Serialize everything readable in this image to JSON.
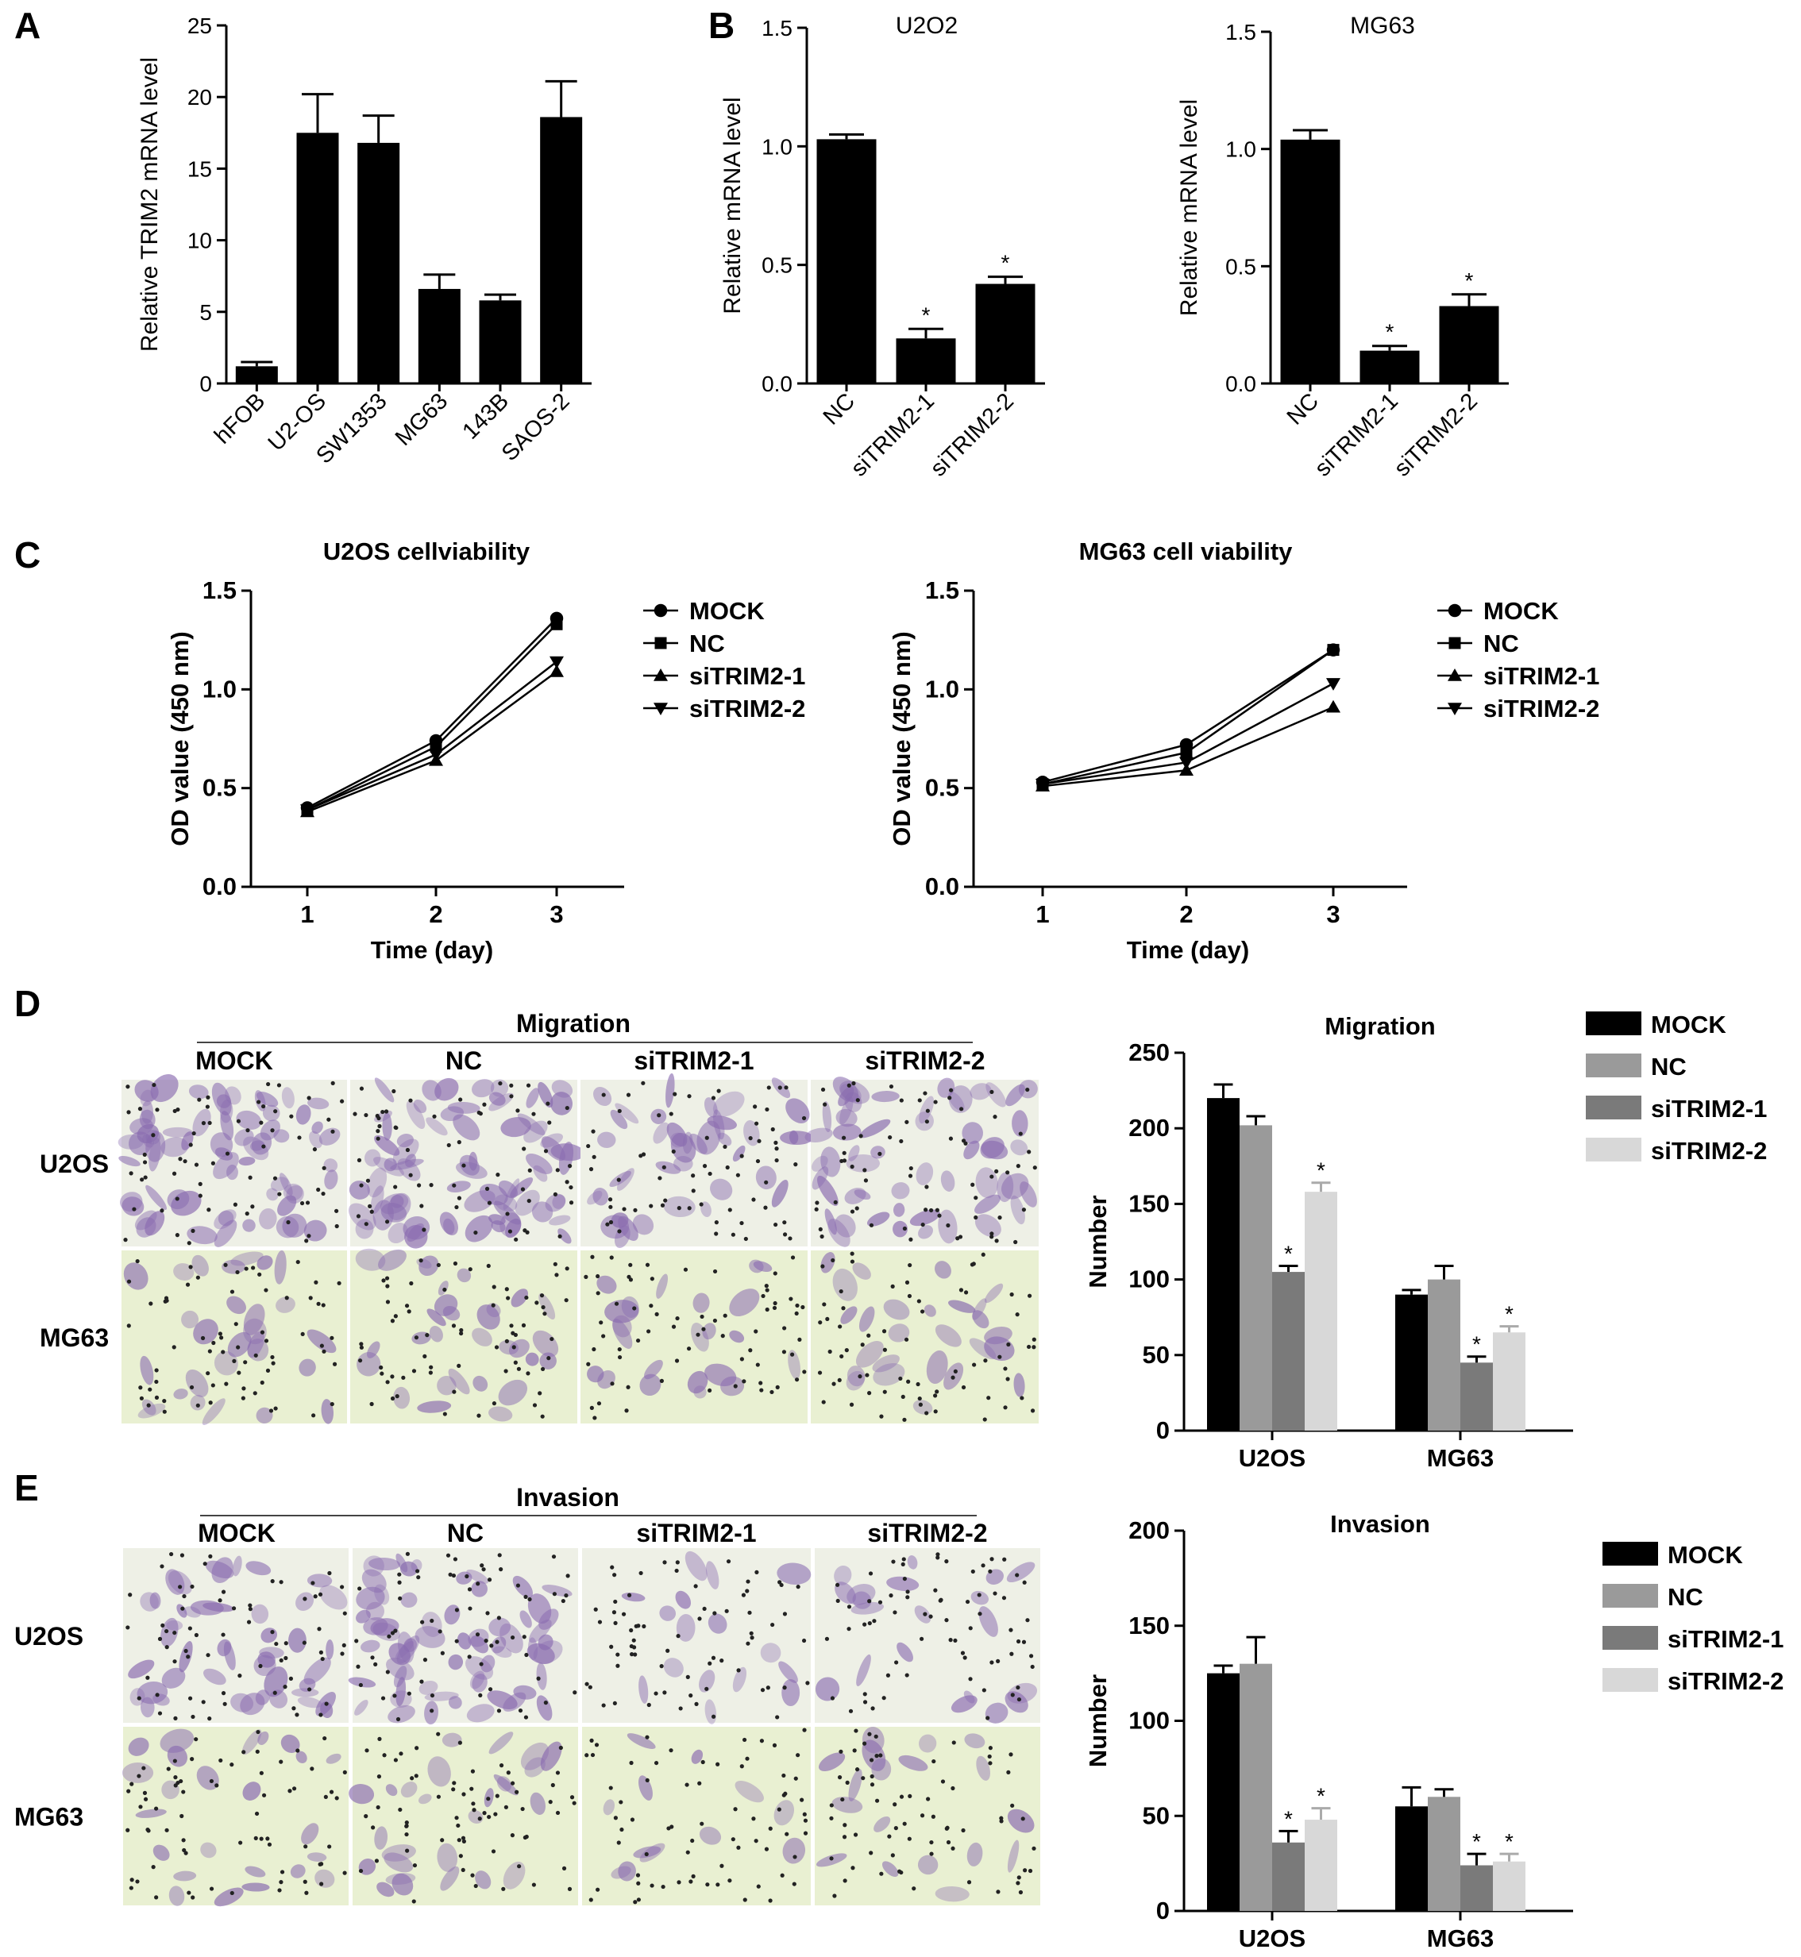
{
  "panels": {
    "A": "A",
    "B": "B",
    "C": "C",
    "D": "D",
    "E": "E"
  },
  "micrographs": {
    "migration_title": "Migration",
    "invasion_title": "Invasion",
    "columns": [
      "MOCK",
      "NC",
      "siTRIM2-1",
      "siTRIM2-2"
    ],
    "rows": [
      "U2OS",
      "MG63"
    ]
  },
  "colors": {
    "bar_black": "#000000",
    "bar_gray1": "#9a9a9a",
    "bar_gray2": "#7a7a7a",
    "bar_gray3": "#d8d8d8",
    "cell_stain": "#8a6cb0",
    "mg63_bg": "#e9f0d2",
    "u2os_bg": "#eef0e6"
  },
  "chart_data": [
    {
      "id": "A",
      "type": "bar",
      "title": "",
      "xlabel": "",
      "ylabel": "Relative TRIM2 mRNA level",
      "ylim": [
        0,
        25
      ],
      "yticks": [
        0,
        5,
        10,
        15,
        20,
        25
      ],
      "categories": [
        "hFOB",
        "U2-OS",
        "SW1353",
        "MG63",
        "143B",
        "SAOS-2"
      ],
      "values": [
        1.2,
        17.5,
        16.8,
        6.6,
        5.8,
        18.6
      ],
      "errors": [
        0.3,
        2.7,
        1.9,
        1.0,
        0.4,
        2.5
      ],
      "stars": [
        "",
        "",
        "",
        "",
        "",
        ""
      ]
    },
    {
      "id": "B1",
      "type": "bar",
      "title": "U2O2",
      "xlabel": "",
      "ylabel": "Relative mRNA level",
      "ylim": [
        0,
        1.5
      ],
      "yticks": [
        "0.0",
        "0.5",
        "1.0",
        "1.5"
      ],
      "categories": [
        "NC",
        "siTRIM2-1",
        "siTRIM2-2"
      ],
      "values": [
        1.03,
        0.19,
        0.42
      ],
      "errors": [
        0.02,
        0.04,
        0.03
      ],
      "stars": [
        "",
        "*",
        "*"
      ]
    },
    {
      "id": "B2",
      "type": "bar",
      "title": "MG63",
      "xlabel": "",
      "ylabel": "Relative mRNA level",
      "ylim": [
        0,
        1.5
      ],
      "yticks": [
        "0.0",
        "0.5",
        "1.0",
        "1.5"
      ],
      "categories": [
        "NC",
        "siTRIM2-1",
        "siTRIM2-2"
      ],
      "values": [
        1.04,
        0.14,
        0.33
      ],
      "errors": [
        0.04,
        0.02,
        0.05
      ],
      "stars": [
        "",
        "*",
        "*"
      ]
    },
    {
      "id": "C1",
      "type": "line",
      "title": "U2OS cellviability",
      "xlabel": "Time (day)",
      "ylabel": "OD value (450 nm)",
      "ylim": [
        0,
        1.5
      ],
      "yticks": [
        "0.0",
        "0.5",
        "1.0",
        "1.5"
      ],
      "x": [
        1,
        2,
        3
      ],
      "series": [
        {
          "name": "MOCK",
          "marker": "circle",
          "values": [
            0.4,
            0.74,
            1.36
          ]
        },
        {
          "name": "NC",
          "marker": "square",
          "values": [
            0.39,
            0.71,
            1.33
          ]
        },
        {
          "name": "siTRIM2-1",
          "marker": "triangle-up",
          "values": [
            0.38,
            0.64,
            1.09
          ]
        },
        {
          "name": "siTRIM2-2",
          "marker": "triangle-down",
          "values": [
            0.39,
            0.67,
            1.14
          ]
        }
      ],
      "legend": "right"
    },
    {
      "id": "C2",
      "type": "line",
      "title": "MG63 cell viability",
      "xlabel": "Time (day)",
      "ylabel": "OD value (450 nm)",
      "ylim": [
        0,
        1.5
      ],
      "yticks": [
        "0.0",
        "0.5",
        "1.0",
        "1.5"
      ],
      "x": [
        1,
        2,
        3
      ],
      "series": [
        {
          "name": "MOCK",
          "marker": "circle",
          "values": [
            0.53,
            0.72,
            1.2
          ]
        },
        {
          "name": "NC",
          "marker": "square",
          "values": [
            0.52,
            0.68,
            1.2
          ]
        },
        {
          "name": "siTRIM2-1",
          "marker": "triangle-up",
          "values": [
            0.51,
            0.59,
            0.91
          ]
        },
        {
          "name": "siTRIM2-2",
          "marker": "triangle-down",
          "values": [
            0.52,
            0.63,
            1.03
          ]
        }
      ],
      "legend": "right"
    },
    {
      "id": "D",
      "type": "bar",
      "title": "Migration",
      "xlabel": "",
      "ylabel": "Number",
      "ylim": [
        0,
        250
      ],
      "yticks": [
        0,
        50,
        100,
        150,
        200,
        250
      ],
      "categories": [
        "U2OS",
        "MG63"
      ],
      "series": [
        {
          "name": "MOCK",
          "values": [
            220,
            90
          ],
          "errors": [
            9,
            3
          ],
          "stars": [
            "",
            ""
          ]
        },
        {
          "name": "NC",
          "values": [
            202,
            100
          ],
          "errors": [
            6,
            9
          ],
          "stars": [
            "",
            ""
          ]
        },
        {
          "name": "siTRIM2-1",
          "values": [
            105,
            45
          ],
          "errors": [
            4,
            4
          ],
          "stars": [
            "*",
            "*"
          ]
        },
        {
          "name": "siTRIM2-2",
          "values": [
            158,
            65
          ],
          "errors": [
            6,
            4
          ],
          "stars": [
            "*",
            "*"
          ]
        }
      ],
      "legend": "right"
    },
    {
      "id": "E",
      "type": "bar",
      "title": "Invasion",
      "xlabel": "",
      "ylabel": "Number",
      "ylim": [
        0,
        200
      ],
      "yticks": [
        0,
        50,
        100,
        150,
        200
      ],
      "categories": [
        "U2OS",
        "MG63"
      ],
      "series": [
        {
          "name": "MOCK",
          "values": [
            125,
            55
          ],
          "errors": [
            4,
            10
          ],
          "stars": [
            "",
            ""
          ]
        },
        {
          "name": "NC",
          "values": [
            130,
            60
          ],
          "errors": [
            14,
            4
          ],
          "stars": [
            "",
            ""
          ]
        },
        {
          "name": "siTRIM2-1",
          "values": [
            36,
            24
          ],
          "errors": [
            6,
            6
          ],
          "stars": [
            "*",
            "*"
          ]
        },
        {
          "name": "siTRIM2-2",
          "values": [
            48,
            26
          ],
          "errors": [
            6,
            4
          ],
          "stars": [
            "*",
            "*"
          ]
        }
      ],
      "legend": "right"
    }
  ]
}
